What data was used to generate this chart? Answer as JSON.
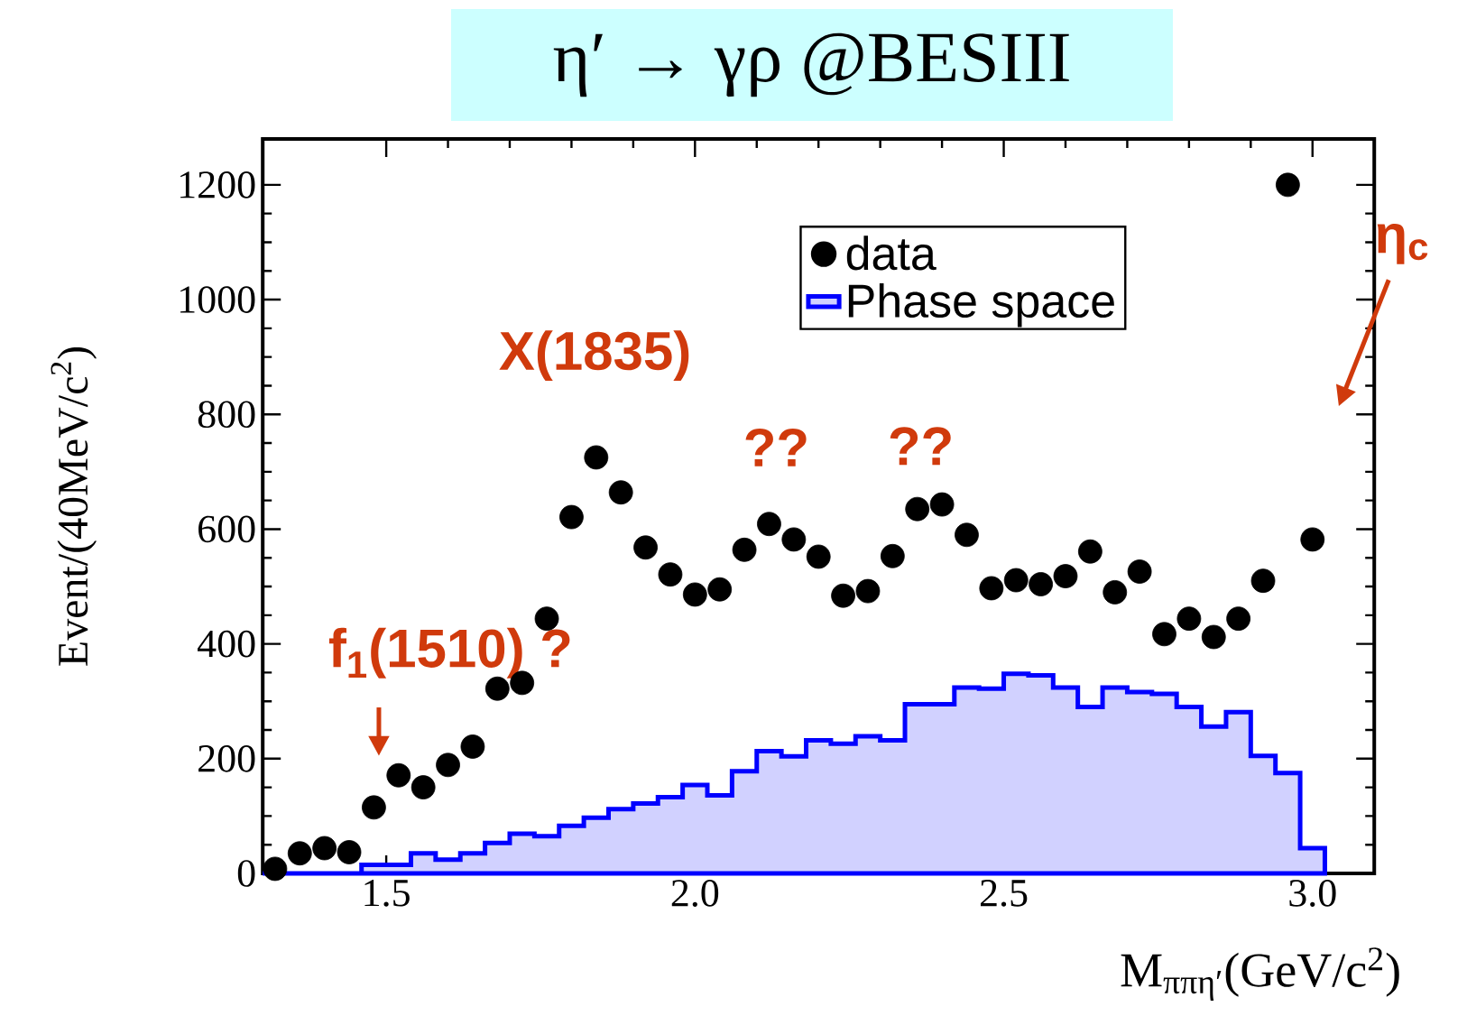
{
  "chart_data": {
    "type": "scatter",
    "title": "η′ → γρ @BESIII",
    "xlabel": "M$_{ππη′}$(GeV/c$^{2}$)",
    "ylabel": "Event/(40MeV/c$^{2}$)",
    "xlim": [
      1.3,
      3.1
    ],
    "ylim": [
      0,
      1280
    ],
    "xticks": [
      1.5,
      {
        "value": 2,
        "label": "2.0"
      },
      2.5,
      {
        "value": 3,
        "label": "3.0"
      }
    ],
    "yticks": [
      0,
      200,
      400,
      600,
      800,
      1000,
      1200
    ],
    "grid": false,
    "legend": "top right",
    "marker": "circle",
    "series": [
      {
        "name": "data",
        "color": "#000000",
        "x": [
          1.32,
          1.36,
          1.4,
          1.44,
          1.48,
          1.52,
          1.56,
          1.6,
          1.64,
          1.68,
          1.72,
          1.76,
          1.8,
          1.84,
          1.88,
          1.92,
          1.96,
          2.0,
          2.04,
          2.08,
          2.12,
          2.16,
          2.2,
          2.24,
          2.28,
          2.32,
          2.36,
          2.4,
          2.44,
          2.48,
          2.52,
          2.56,
          2.6,
          2.64,
          2.68,
          2.72,
          2.76,
          2.8,
          2.84,
          2.88,
          2.92,
          2.96,
          3.0
        ],
        "values": [
          8,
          35,
          44,
          37,
          115,
          171,
          150,
          189,
          221,
          322,
          332,
          444,
          621,
          725,
          664,
          568,
          521,
          486,
          495,
          564,
          609,
          582,
          552,
          484,
          492,
          553,
          635,
          643,
          590,
          497,
          511,
          504,
          518,
          561,
          490,
          526,
          417,
          444,
          412,
          444,
          510,
          1200,
          582
        ]
      },
      {
        "name": "Phase space",
        "type": "histogram",
        "color": "#0000ff",
        "bins": [
          1.3,
          1.34,
          1.38,
          1.42,
          1.46,
          1.5,
          1.54,
          1.58,
          1.62,
          1.66,
          1.7,
          1.74,
          1.78,
          1.82,
          1.86,
          1.9,
          1.94,
          1.98,
          2.02,
          2.06,
          2.1,
          2.14,
          2.18,
          2.22,
          2.26,
          2.3,
          2.34,
          2.38,
          2.42,
          2.46,
          2.5,
          2.54,
          2.58,
          2.62,
          2.66,
          2.7,
          2.74,
          2.78,
          2.82,
          2.86,
          2.9,
          2.94,
          2.98,
          3.02
        ],
        "values": [
          0,
          0,
          0,
          0,
          15,
          15,
          35,
          24,
          35,
          53,
          69,
          65,
          83,
          97,
          112,
          122,
          133,
          154,
          136,
          178,
          213,
          204,
          232,
          226,
          239,
          232,
          295,
          295,
          324,
          322,
          348,
          345,
          324,
          290,
          324,
          316,
          313,
          290,
          256,
          281,
          205,
          175,
          44
        ]
      }
    ],
    "annotations": [
      "f$_{1}$(1510) ?",
      "X(1835)",
      "??",
      "??",
      "η$_{c}$"
    ]
  }
}
